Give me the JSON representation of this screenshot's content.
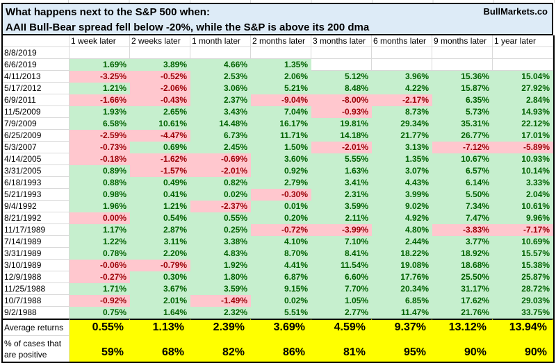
{
  "header": {
    "title_line1": "What happens next to the S&P 500 when:",
    "title_line2": "AAII Bull-Bear spread fell below -20%, while the S&P is above its 200 dma",
    "brand": "BullMarkets.co"
  },
  "colors": {
    "title_bg": "#DDEBF7",
    "positive_bg": "#C6EFCE",
    "positive_text": "#006100",
    "negative_bg": "#FFC7CE",
    "negative_text": "#9C0006",
    "footer_bg": "#FFFF00",
    "gridline": "#D9D9D9"
  },
  "table": {
    "columns": [
      "1 week later",
      "2 weeks later",
      "1 month later",
      "2 months later",
      "3 months later",
      "6 months later",
      "9 months later",
      "1 year later"
    ],
    "rows": [
      {
        "date": "8/8/2019",
        "values": [
          "",
          "",
          "",
          "",
          "",
          "",
          "",
          ""
        ]
      },
      {
        "date": "6/6/2019",
        "values": [
          "1.69%",
          "3.89%",
          "4.66%",
          "1.35%",
          "",
          "",
          "",
          ""
        ]
      },
      {
        "date": "4/11/2013",
        "values": [
          "-3.25%",
          "-0.52%",
          "2.53%",
          "2.06%",
          "5.12%",
          "3.96%",
          "15.36%",
          "15.04%"
        ]
      },
      {
        "date": "5/17/2012",
        "values": [
          "1.21%",
          "-2.06%",
          "3.06%",
          "5.21%",
          "8.48%",
          "4.22%",
          "15.87%",
          "27.92%"
        ]
      },
      {
        "date": "6/9/2011",
        "values": [
          "-1.66%",
          "-0.43%",
          "2.37%",
          "-9.04%",
          "-8.00%",
          "-2.17%",
          "6.35%",
          "2.84%"
        ]
      },
      {
        "date": "11/5/2009",
        "values": [
          "1.93%",
          "2.65%",
          "3.43%",
          "7.04%",
          "-0.93%",
          "8.73%",
          "5.73%",
          "14.93%"
        ]
      },
      {
        "date": "7/9/2009",
        "values": [
          "6.58%",
          "10.61%",
          "14.48%",
          "16.17%",
          "19.81%",
          "29.34%",
          "35.31%",
          "22.12%"
        ]
      },
      {
        "date": "6/25/2009",
        "values": [
          "-2.59%",
          "-4.47%",
          "6.73%",
          "11.71%",
          "14.18%",
          "21.77%",
          "26.77%",
          "17.01%"
        ]
      },
      {
        "date": "5/3/2007",
        "values": [
          "-0.73%",
          "0.69%",
          "2.45%",
          "1.50%",
          "-2.01%",
          "3.13%",
          "-7.12%",
          "-5.89%"
        ]
      },
      {
        "date": "4/14/2005",
        "values": [
          "-0.18%",
          "-1.62%",
          "-0.69%",
          "3.60%",
          "5.55%",
          "1.35%",
          "10.67%",
          "10.93%"
        ]
      },
      {
        "date": "3/31/2005",
        "values": [
          "0.89%",
          "-1.57%",
          "-2.01%",
          "0.92%",
          "1.63%",
          "3.07%",
          "6.57%",
          "10.14%"
        ]
      },
      {
        "date": "6/18/1993",
        "values": [
          "0.88%",
          "0.49%",
          "0.82%",
          "2.79%",
          "3.41%",
          "4.43%",
          "6.14%",
          "3.33%"
        ]
      },
      {
        "date": "5/21/1993",
        "values": [
          "0.98%",
          "0.41%",
          "0.02%",
          "-0.30%",
          "2.31%",
          "3.99%",
          "5.50%",
          "2.04%"
        ]
      },
      {
        "date": "9/4/1992",
        "values": [
          "1.96%",
          "1.21%",
          "-2.37%",
          "0.01%",
          "3.59%",
          "9.02%",
          "7.34%",
          "10.61%"
        ]
      },
      {
        "date": "8/21/1992",
        "values": [
          "0.00%",
          "0.54%",
          "0.55%",
          "0.20%",
          "2.11%",
          "4.92%",
          "7.47%",
          "9.96%"
        ]
      },
      {
        "date": "11/17/1989",
        "values": [
          "1.17%",
          "2.87%",
          "0.25%",
          "-0.72%",
          "-3.99%",
          "4.80%",
          "-3.83%",
          "-7.17%"
        ]
      },
      {
        "date": "7/14/1989",
        "values": [
          "1.22%",
          "3.11%",
          "3.38%",
          "4.10%",
          "7.10%",
          "2.44%",
          "3.77%",
          "10.69%"
        ]
      },
      {
        "date": "3/31/1989",
        "values": [
          "0.78%",
          "2.20%",
          "4.83%",
          "8.70%",
          "8.41%",
          "18.22%",
          "18.92%",
          "15.57%"
        ]
      },
      {
        "date": "3/10/1989",
        "values": [
          "-0.06%",
          "-0.79%",
          "1.92%",
          "4.41%",
          "11.54%",
          "19.08%",
          "18.68%",
          "15.38%"
        ]
      },
      {
        "date": "12/9/1988",
        "values": [
          "-0.27%",
          "0.30%",
          "1.80%",
          "6.87%",
          "6.60%",
          "17.76%",
          "25.50%",
          "25.87%"
        ]
      },
      {
        "date": "11/25/1988",
        "values": [
          "1.71%",
          "3.67%",
          "3.59%",
          "9.15%",
          "7.70%",
          "20.34%",
          "31.17%",
          "28.72%"
        ]
      },
      {
        "date": "10/7/1988",
        "values": [
          "-0.92%",
          "2.01%",
          "-1.49%",
          "0.02%",
          "1.05%",
          "6.85%",
          "17.62%",
          "29.03%"
        ]
      },
      {
        "date": "9/2/1988",
        "values": [
          "0.75%",
          "1.64%",
          "2.32%",
          "5.51%",
          "2.77%",
          "11.47%",
          "21.76%",
          "33.75%"
        ]
      }
    ],
    "footer": {
      "average_label": "Average returns",
      "averages": [
        "0.55%",
        "1.13%",
        "2.39%",
        "3.69%",
        "4.59%",
        "9.37%",
        "13.12%",
        "13.94%"
      ],
      "positive_label_line1": "% of cases that",
      "positive_label_line2": "are positive",
      "positives": [
        "59%",
        "68%",
        "82%",
        "86%",
        "81%",
        "95%",
        "90%",
        "90%"
      ]
    }
  }
}
